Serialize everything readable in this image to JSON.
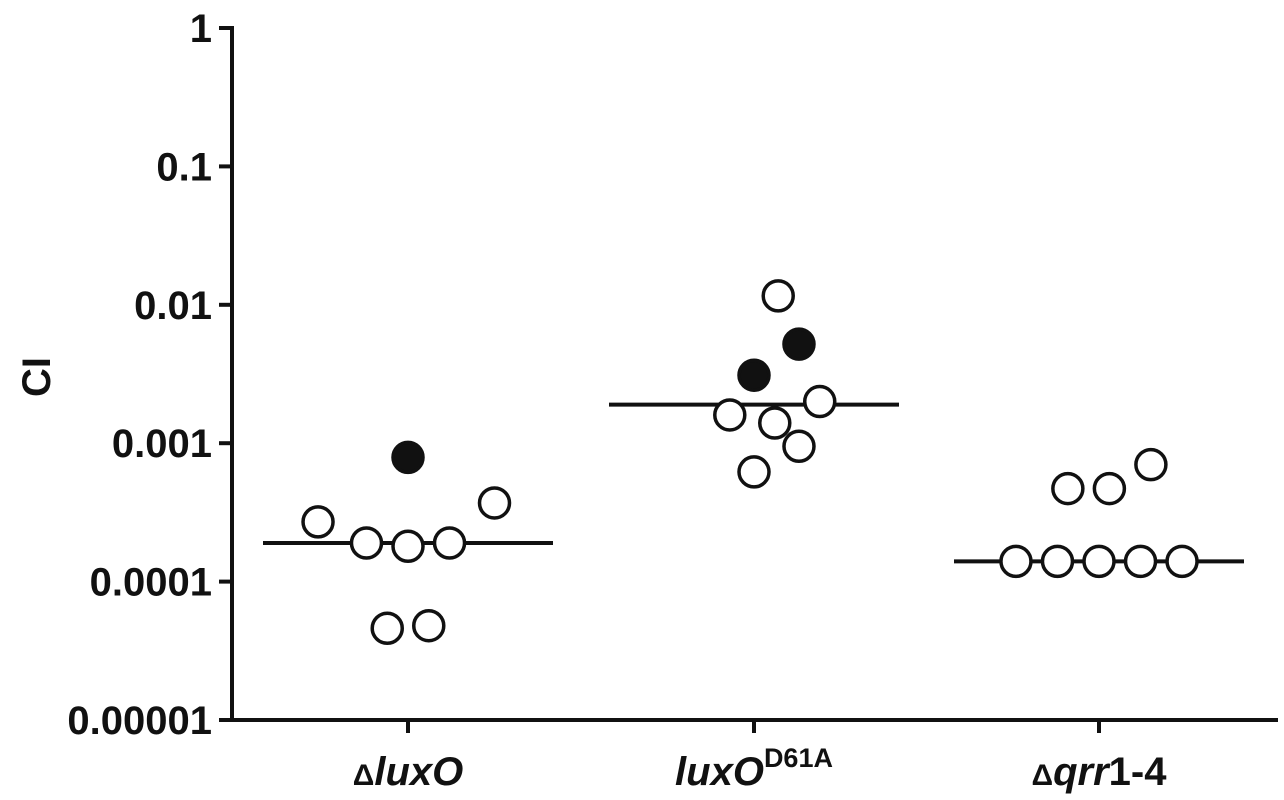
{
  "chart_data": {
    "type": "scatter",
    "title": "",
    "ylabel": "CI",
    "xlabel": "",
    "yscale": "log",
    "ylim": [
      1e-05,
      1
    ],
    "y_ticks": [
      {
        "value": 1,
        "label": "1"
      },
      {
        "value": 0.1,
        "label": "0.1"
      },
      {
        "value": 0.01,
        "label": "0.01"
      },
      {
        "value": 0.001,
        "label": "0.001"
      },
      {
        "value": 0.0001,
        "label": "0.0001"
      },
      {
        "value": 1e-05,
        "label": "0.00001"
      }
    ],
    "categories": [
      {
        "id": "dluxo",
        "prefix": "Δ",
        "italic": "luxO",
        "plain": "",
        "superscript": ""
      },
      {
        "id": "luxo-d61a",
        "prefix": "",
        "italic": "luxO",
        "plain": "",
        "superscript": "D61A"
      },
      {
        "id": "dqrr",
        "prefix": "Δ",
        "italic": "qrr",
        "plain": "1-4",
        "superscript": ""
      }
    ],
    "series": [
      {
        "category": "dluxo",
        "median": 0.00019,
        "points": [
          {
            "offset": -0.26,
            "y": 0.00027,
            "filled": false
          },
          {
            "offset": -0.12,
            "y": 0.00019,
            "filled": false
          },
          {
            "offset": 0.0,
            "y": 0.00018,
            "filled": false
          },
          {
            "offset": 0.12,
            "y": 0.00019,
            "filled": false
          },
          {
            "offset": 0.25,
            "y": 0.00037,
            "filled": false
          },
          {
            "offset": 0.0,
            "y": 0.00079,
            "filled": true
          },
          {
            "offset": -0.06,
            "y": 4.6e-05,
            "filled": false
          },
          {
            "offset": 0.06,
            "y": 4.8e-05,
            "filled": false
          }
        ]
      },
      {
        "category": "luxo-d61a",
        "median": 0.0019,
        "points": [
          {
            "offset": 0.07,
            "y": 0.0116,
            "filled": false
          },
          {
            "offset": 0.13,
            "y": 0.0052,
            "filled": true
          },
          {
            "offset": 0.0,
            "y": 0.0031,
            "filled": true
          },
          {
            "offset": -0.07,
            "y": 0.0016,
            "filled": false
          },
          {
            "offset": 0.06,
            "y": 0.0014,
            "filled": false
          },
          {
            "offset": 0.19,
            "y": 0.002,
            "filled": false
          },
          {
            "offset": 0.13,
            "y": 0.00095,
            "filled": false
          },
          {
            "offset": 0.0,
            "y": 0.00062,
            "filled": false
          }
        ]
      },
      {
        "category": "dqrr",
        "median": 0.00014,
        "points": [
          {
            "offset": -0.09,
            "y": 0.00047,
            "filled": false
          },
          {
            "offset": 0.03,
            "y": 0.00047,
            "filled": false
          },
          {
            "offset": 0.15,
            "y": 0.0007,
            "filled": false
          },
          {
            "offset": -0.24,
            "y": 0.00014,
            "filled": false
          },
          {
            "offset": -0.12,
            "y": 0.00014,
            "filled": false
          },
          {
            "offset": 0.0,
            "y": 0.00014,
            "filled": false
          },
          {
            "offset": 0.12,
            "y": 0.00014,
            "filled": false
          },
          {
            "offset": 0.24,
            "y": 0.00014,
            "filled": false
          }
        ]
      }
    ],
    "colors": {
      "axis": "#111111",
      "marker_edge": "#111111",
      "marker_fill_open": "#ffffff",
      "marker_fill_closed": "#111111"
    }
  }
}
